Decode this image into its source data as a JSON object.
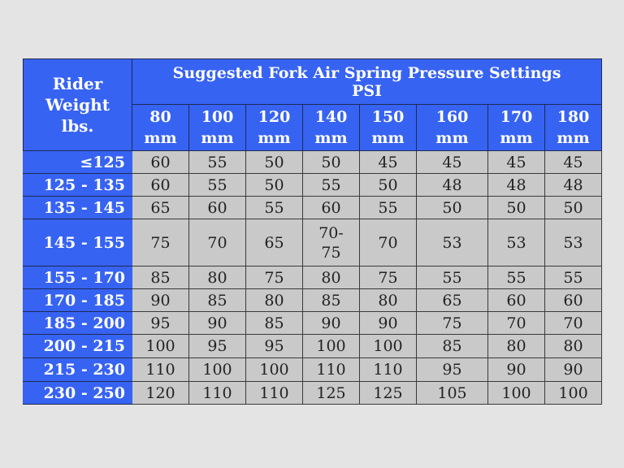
{
  "table": {
    "title_line1": "Suggested Fork Air Spring Pressure Settings",
    "title_line2": "PSI",
    "rider_header": [
      "Rider",
      "Weight",
      "lbs."
    ],
    "columns": [
      {
        "value": "80",
        "unit": "mm"
      },
      {
        "value": "100",
        "unit": "mm"
      },
      {
        "value": "120",
        "unit": "mm"
      },
      {
        "value": "140",
        "unit": "mm"
      },
      {
        "value": "150",
        "unit": "mm"
      },
      {
        "value": "160",
        "unit": "mm"
      },
      {
        "value": "170",
        "unit": "mm"
      },
      {
        "value": "180",
        "unit": "mm"
      }
    ],
    "rows": [
      {
        "weight": "≤125",
        "values": [
          "60",
          "55",
          "50",
          "50",
          "45",
          "45",
          "45",
          "45"
        ]
      },
      {
        "weight": "125 - 135",
        "values": [
          "60",
          "55",
          "50",
          "55",
          "50",
          "48",
          "48",
          "48"
        ]
      },
      {
        "weight": "135 - 145",
        "values": [
          "65",
          "60",
          "55",
          "60",
          "55",
          "50",
          "50",
          "50"
        ]
      },
      {
        "weight": "145 - 155",
        "values": [
          "75",
          "70",
          "65",
          "70-\n75",
          "70",
          "53",
          "53",
          "53"
        ]
      },
      {
        "weight": "155 - 170",
        "values": [
          "85",
          "80",
          "75",
          "80",
          "75",
          "55",
          "55",
          "55"
        ]
      },
      {
        "weight": "170 - 185",
        "values": [
          "90",
          "85",
          "80",
          "85",
          "80",
          "65",
          "60",
          "60"
        ]
      },
      {
        "weight": "185 - 200",
        "values": [
          "95",
          "90",
          "85",
          "90",
          "90",
          "75",
          "70",
          "70"
        ]
      },
      {
        "weight": "200 - 215",
        "values": [
          "100",
          "95",
          "95",
          "100",
          "100",
          "85",
          "80",
          "80"
        ]
      },
      {
        "weight": "215 - 230",
        "values": [
          "110",
          "100",
          "100",
          "110",
          "110",
          "95",
          "90",
          "90"
        ]
      },
      {
        "weight": "230 - 250",
        "values": [
          "120",
          "110",
          "110",
          "125",
          "125",
          "105",
          "100",
          "100"
        ]
      }
    ]
  },
  "colors": {
    "header_blue": "#3763f2",
    "cell_gray": "#c9c9c9",
    "background": "#e4e4e4"
  }
}
